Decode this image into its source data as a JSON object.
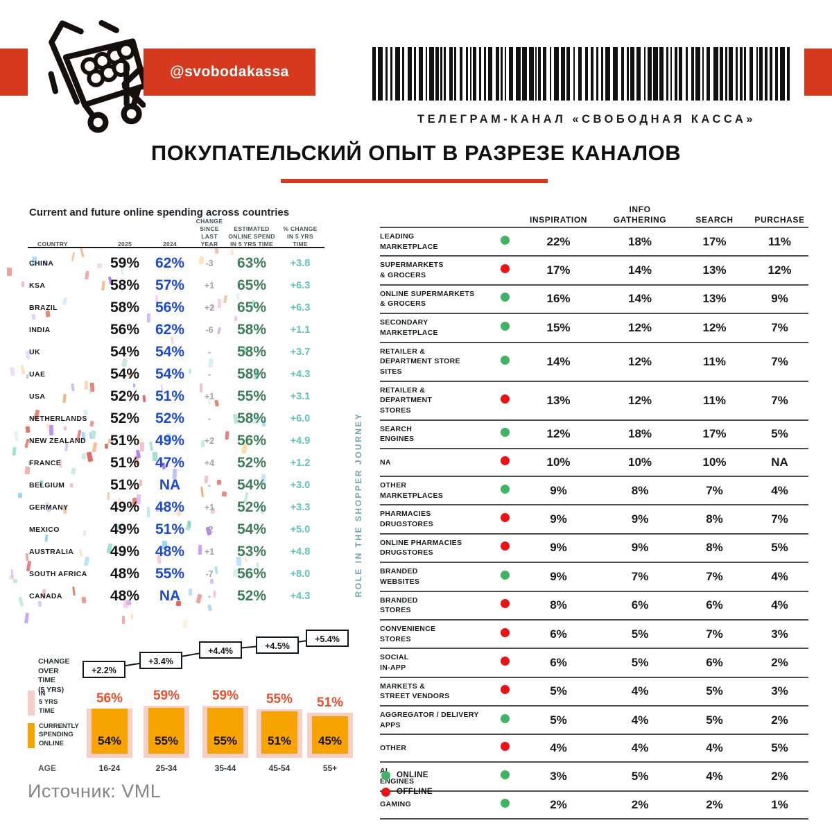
{
  "colors": {
    "accent_red": "#d53a1e",
    "col_2024_blue": "#1c49d9",
    "estimated_green": "#3e7f58",
    "change5_teal": "#5ec4bc",
    "change_gray": "#9da3a8",
    "online_green": "#3db563",
    "offline_red": "#ee1111",
    "bar_current_orange": "#f7a300",
    "bar_future_pink": "#f8cfc6",
    "future_label_red": "#e9512b"
  },
  "header": {
    "badge": "@svobodakassa",
    "channel_line": "ТЕЛЕГРАМ-КАНАЛ «СВОБОДНАЯ КАССА»",
    "title": "ПОКУПАТЕЛЬСКИЙ ОПЫТ В РАЗРЕЗЕ КАНАЛОВ"
  },
  "source": "Источник: VML",
  "chart_data": [
    {
      "type": "table",
      "title": "Current and future online spending across countries",
      "columns": [
        "COUNTRY",
        "2025",
        "2024",
        "CHANGE\nSINCE LAST\nYEAR",
        "ESTIMATED\nONLINE SPEND\nIN 5 YRS TIME",
        "% CHANGE\nIN 5 YRS\nTIME"
      ],
      "rows": [
        [
          "CHINA",
          "59%",
          "62%",
          "-3",
          "63%",
          "+3.8"
        ],
        [
          "KSA",
          "58%",
          "57%",
          "+1",
          "65%",
          "+6.3"
        ],
        [
          "BRAZIL",
          "58%",
          "56%",
          "+2",
          "65%",
          "+6.3"
        ],
        [
          "INDIA",
          "56%",
          "62%",
          "-6",
          "58%",
          "+1.1"
        ],
        [
          "UK",
          "54%",
          "54%",
          "-",
          "58%",
          "+3.7"
        ],
        [
          "UAE",
          "54%",
          "54%",
          "-",
          "58%",
          "+4.3"
        ],
        [
          "USA",
          "52%",
          "51%",
          "+1",
          "55%",
          "+3.1"
        ],
        [
          "NETHERLANDS",
          "52%",
          "52%",
          "-",
          "58%",
          "+6.0"
        ],
        [
          "NEW ZEALAND",
          "51%",
          "49%",
          "+2",
          "56%",
          "+4.9"
        ],
        [
          "FRANCE",
          "51%",
          "47%",
          "+4",
          "52%",
          "+1.2"
        ],
        [
          "BELGIUM",
          "51%",
          "NA",
          "-",
          "54%",
          "+3.0"
        ],
        [
          "GERMANY",
          "49%",
          "48%",
          "+1",
          "52%",
          "+3.3"
        ],
        [
          "MEXICO",
          "49%",
          "51%",
          "-2",
          "54%",
          "+5.0"
        ],
        [
          "AUSTRALIA",
          "49%",
          "48%",
          "+1",
          "53%",
          "+4.8"
        ],
        [
          "SOUTH AFRICA",
          "48%",
          "55%",
          "-7",
          "56%",
          "+8.0"
        ],
        [
          "CANADA",
          "48%",
          "NA",
          "-",
          "52%",
          "+4.3"
        ]
      ]
    },
    {
      "type": "bar",
      "categories": [
        "16-24",
        "25-34",
        "35-44",
        "45-54",
        "55+"
      ],
      "series": [
        {
          "name": "IN\n5 YRS\nTIME",
          "values": [
            56,
            59,
            59,
            55,
            51
          ]
        },
        {
          "name": "CURRENTLY\nSPENDING\nONLINE",
          "values": [
            54,
            55,
            55,
            51,
            45
          ]
        }
      ],
      "annotations": {
        "label": "CHANGE\nOVER\nTIME\n(5 YRS)",
        "values": [
          "+2.2%",
          "+3.4%",
          "+4.4%",
          "+4.5%",
          "+5.4%"
        ]
      },
      "xlabel": "AGE",
      "ylim": [
        0,
        100
      ],
      "grid": false,
      "legend_position": "left"
    },
    {
      "type": "table",
      "vertical_label": "ROLE IN THE SHOPPER JOURNEY",
      "columns": [
        "INSPIRATION",
        "INFO\nGATHERING",
        "SEARCH",
        "PURCHASE"
      ],
      "rows": [
        {
          "label": "LEADING\nMARKETPLACE",
          "mode": "online",
          "values": [
            "22%",
            "18%",
            "17%",
            "11%"
          ]
        },
        {
          "label": "SUPERMARKETS\n& GROCERS",
          "mode": "offline",
          "values": [
            "17%",
            "14%",
            "13%",
            "12%"
          ]
        },
        {
          "label": "ONLINE SUPERMARKETS\n& GROCERS",
          "mode": "online",
          "values": [
            "16%",
            "14%",
            "13%",
            "9%"
          ]
        },
        {
          "label": "SECONDARY\nMARKETPLACE",
          "mode": "online",
          "values": [
            "15%",
            "12%",
            "12%",
            "7%"
          ]
        },
        {
          "label": "RETAILER &\nDEPARTMENT STORE\nSITES",
          "mode": "online",
          "values": [
            "14%",
            "12%",
            "11%",
            "7%"
          ]
        },
        {
          "label": "RETAILER &\nDEPARTMENT\nSTORES",
          "mode": "offline",
          "values": [
            "13%",
            "12%",
            "11%",
            "7%"
          ]
        },
        {
          "label": "SEARCH\nENGINES",
          "mode": "online",
          "values": [
            "12%",
            "18%",
            "17%",
            "5%"
          ]
        },
        {
          "label": "NA",
          "mode": "offline",
          "values": [
            "10%",
            "10%",
            "10%",
            "NA"
          ]
        },
        {
          "label": "OTHER\nMARKETPLACES",
          "mode": "online",
          "values": [
            "9%",
            "8%",
            "7%",
            "4%"
          ]
        },
        {
          "label": "PHARMACIES\nDRUGSTORES",
          "mode": "offline",
          "values": [
            "9%",
            "9%",
            "8%",
            "7%"
          ]
        },
        {
          "label": "ONLINE PHARMACIES\nDRUGSTORES",
          "mode": "offline",
          "values": [
            "9%",
            "9%",
            "8%",
            "5%"
          ]
        },
        {
          "label": "BRANDED\nWEBSITES",
          "mode": "online",
          "values": [
            "9%",
            "7%",
            "7%",
            "4%"
          ]
        },
        {
          "label": "BRANDED\nSTORES",
          "mode": "offline",
          "values": [
            "8%",
            "6%",
            "6%",
            "4%"
          ]
        },
        {
          "label": "CONVENIENCE\nSTORES",
          "mode": "offline",
          "values": [
            "6%",
            "5%",
            "7%",
            "3%"
          ]
        },
        {
          "label": "SOCIAL\nIN-APP",
          "mode": "offline",
          "values": [
            "6%",
            "5%",
            "6%",
            "2%"
          ]
        },
        {
          "label": "MARKETS &\nSTREET VENDORS",
          "mode": "offline",
          "values": [
            "5%",
            "4%",
            "5%",
            "3%"
          ]
        },
        {
          "label": "AGGREGATOR / DELIVERY\nAPPS",
          "mode": "online",
          "values": [
            "5%",
            "4%",
            "5%",
            "2%"
          ]
        },
        {
          "label": "OTHER",
          "mode": "offline",
          "values": [
            "4%",
            "4%",
            "4%",
            "5%"
          ]
        },
        {
          "label": "AI\nENGINES",
          "mode": "online",
          "values": [
            "3%",
            "5%",
            "4%",
            "2%"
          ]
        },
        {
          "label": "GAMING",
          "mode": "online",
          "values": [
            "2%",
            "2%",
            "2%",
            "1%"
          ]
        }
      ],
      "legend": [
        {
          "label": "ONLINE",
          "color": "#3db563"
        },
        {
          "label": "OFFLINE",
          "color": "#ee1111"
        }
      ]
    }
  ]
}
